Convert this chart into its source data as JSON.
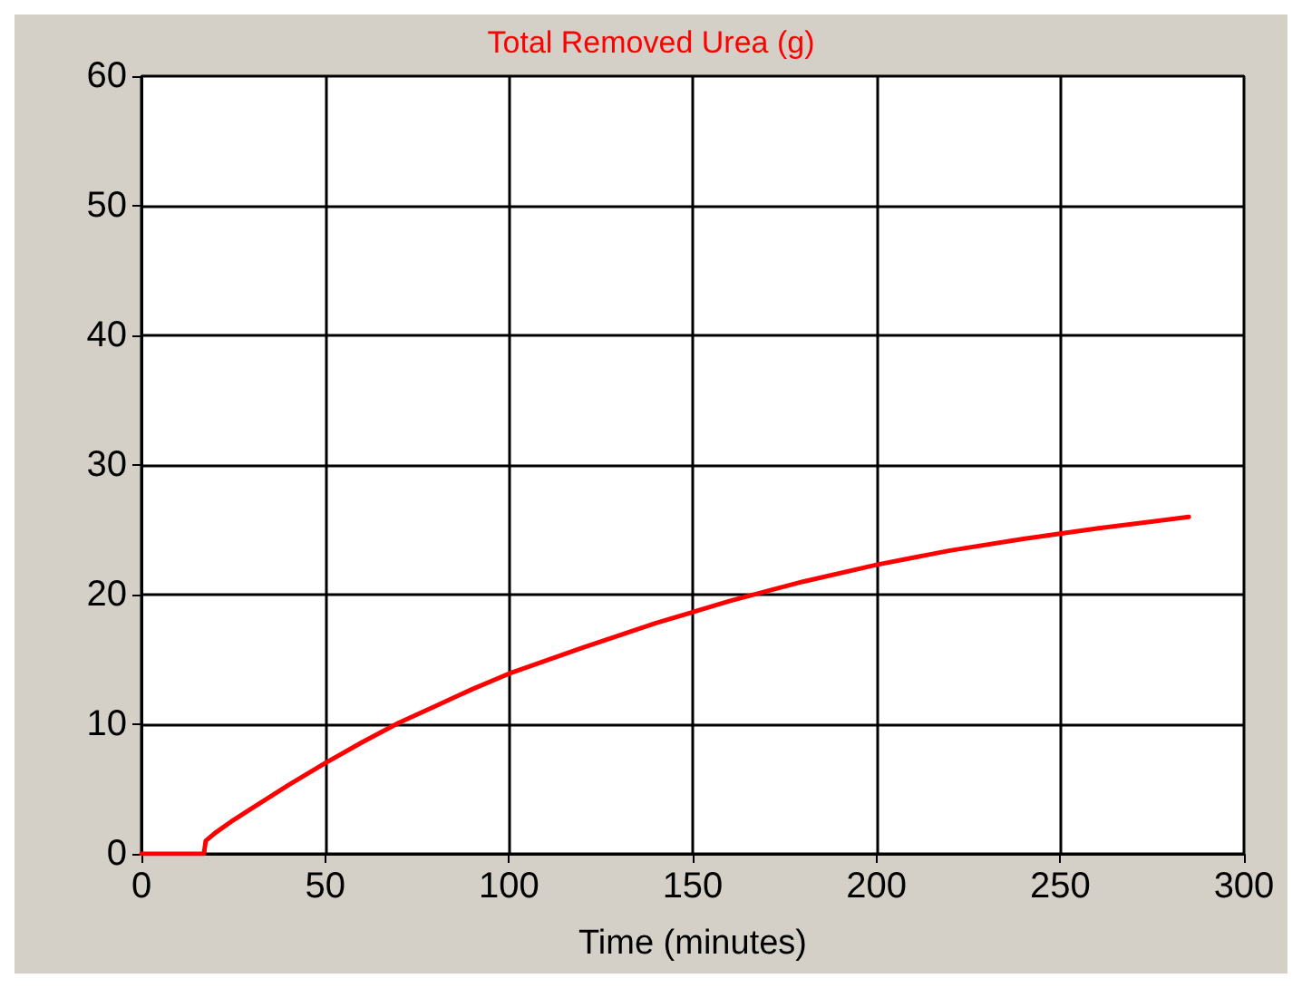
{
  "chart_data": {
    "type": "line",
    "title": "Total Removed Urea (g)",
    "xlabel": "Time (minutes)",
    "x": [
      0,
      17,
      17.5,
      20,
      25,
      30,
      40,
      50,
      60,
      70,
      80,
      90,
      100,
      120,
      140,
      160,
      180,
      200,
      220,
      240,
      260,
      285
    ],
    "series": [
      {
        "color": "#ff0000",
        "values": [
          0,
          0,
          1,
          1.6,
          2.6,
          3.5,
          5.3,
          7,
          8.6,
          10.1,
          11.4,
          12.7,
          13.9,
          15.9,
          17.8,
          19.5,
          21,
          22.3,
          23.4,
          24.3,
          25.1,
          26
        ]
      }
    ],
    "xlim": [
      0,
      300
    ],
    "xticks": [
      0,
      50,
      100,
      150,
      200,
      250,
      300
    ],
    "ylim": [
      0,
      60
    ],
    "yticks": [
      0,
      10,
      20,
      30,
      40,
      50,
      60
    ],
    "grid": true,
    "marker": "none",
    "line_style": "solid"
  }
}
